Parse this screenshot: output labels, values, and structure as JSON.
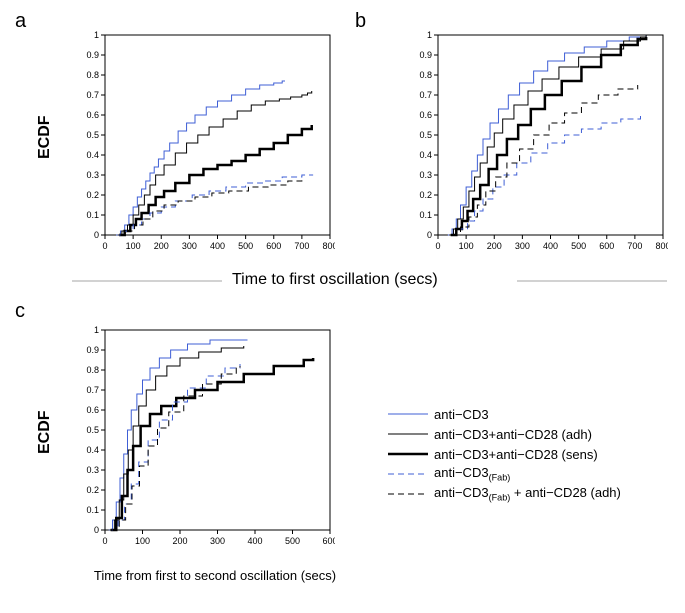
{
  "colors": {
    "blue": "#3f5fd6",
    "black": "#000000",
    "axis": "#000000",
    "grid": "none",
    "bg": "#ffffff"
  },
  "fonts": {
    "panel_label": 20,
    "axis_label": 16,
    "tick": 10,
    "legend": 13
  },
  "legend_items": [
    {
      "label_html": "anti−CD3",
      "color": "#3f5fd6",
      "width": 1,
      "dash": "none"
    },
    {
      "label_html": "anti−CD3+anti−CD28 (adh)",
      "color": "#000000",
      "width": 1,
      "dash": "none"
    },
    {
      "label_html": "anti−CD3+anti−CD28 (sens)",
      "color": "#000000",
      "width": 2.5,
      "dash": "none"
    },
    {
      "label_html": "anti−CD3<sub>(Fab)</sub>",
      "color": "#3f5fd6",
      "width": 1,
      "dash": "6,4"
    },
    {
      "label_html": "anti−CD3<sub>(Fab)</sub> + anti−CD28 (adh)",
      "color": "#000000",
      "width": 1,
      "dash": "6,4"
    }
  ],
  "panel_labels": {
    "a": "a",
    "b": "b",
    "c": "c"
  },
  "shared_xlabel_ab": "Time to first oscillation (secs)",
  "ylabel": "ECDF",
  "xlabel_c": "Time from first to second oscillation (secs)",
  "panel_a": {
    "xlim": [
      0,
      800
    ],
    "ylim": [
      0,
      1
    ],
    "xticks": [
      0,
      100,
      200,
      300,
      400,
      500,
      600,
      700,
      800
    ],
    "yticks": [
      0,
      0.1,
      0.2,
      0.3,
      0.4,
      0.5,
      0.6,
      0.7,
      0.8,
      0.9,
      1
    ],
    "series": [
      {
        "key": "anti_cd3",
        "color": "#3f5fd6",
        "width": 1,
        "dash": "none",
        "points": [
          [
            40,
            0
          ],
          [
            55,
            0.02
          ],
          [
            70,
            0.05
          ],
          [
            85,
            0.1
          ],
          [
            100,
            0.14
          ],
          [
            115,
            0.19
          ],
          [
            130,
            0.23
          ],
          [
            145,
            0.27
          ],
          [
            160,
            0.31
          ],
          [
            175,
            0.34
          ],
          [
            190,
            0.38
          ],
          [
            210,
            0.42
          ],
          [
            230,
            0.46
          ],
          [
            260,
            0.52
          ],
          [
            290,
            0.56
          ],
          [
            320,
            0.6
          ],
          [
            360,
            0.64
          ],
          [
            400,
            0.67
          ],
          [
            450,
            0.7
          ],
          [
            500,
            0.73
          ],
          [
            550,
            0.75
          ],
          [
            600,
            0.76
          ],
          [
            630,
            0.77
          ],
          [
            640,
            0.77
          ]
        ]
      },
      {
        "key": "anti_cd3_cd28_adh",
        "color": "#000000",
        "width": 1,
        "dash": "none",
        "points": [
          [
            45,
            0
          ],
          [
            60,
            0.02
          ],
          [
            80,
            0.05
          ],
          [
            100,
            0.1
          ],
          [
            120,
            0.15
          ],
          [
            140,
            0.2
          ],
          [
            160,
            0.25
          ],
          [
            180,
            0.3
          ],
          [
            210,
            0.35
          ],
          [
            250,
            0.41
          ],
          [
            290,
            0.46
          ],
          [
            330,
            0.5
          ],
          [
            370,
            0.54
          ],
          [
            420,
            0.58
          ],
          [
            470,
            0.62
          ],
          [
            520,
            0.65
          ],
          [
            570,
            0.67
          ],
          [
            620,
            0.68
          ],
          [
            660,
            0.69
          ],
          [
            700,
            0.7
          ],
          [
            720,
            0.71
          ],
          [
            735,
            0.72
          ]
        ]
      },
      {
        "key": "anti_cd3_cd28_sens",
        "color": "#000000",
        "width": 2.5,
        "dash": "none",
        "points": [
          [
            50,
            0
          ],
          [
            70,
            0.02
          ],
          [
            90,
            0.05
          ],
          [
            110,
            0.08
          ],
          [
            130,
            0.11
          ],
          [
            155,
            0.15
          ],
          [
            180,
            0.19
          ],
          [
            210,
            0.22
          ],
          [
            250,
            0.26
          ],
          [
            300,
            0.3
          ],
          [
            350,
            0.33
          ],
          [
            400,
            0.35
          ],
          [
            450,
            0.37
          ],
          [
            500,
            0.4
          ],
          [
            550,
            0.43
          ],
          [
            600,
            0.46
          ],
          [
            650,
            0.5
          ],
          [
            700,
            0.53
          ],
          [
            735,
            0.55
          ]
        ]
      },
      {
        "key": "anti_cd3_fab",
        "color": "#3f5fd6",
        "width": 1,
        "dash": "6,4",
        "points": [
          [
            50,
            0
          ],
          [
            75,
            0.02
          ],
          [
            100,
            0.05
          ],
          [
            130,
            0.08
          ],
          [
            160,
            0.11
          ],
          [
            200,
            0.14
          ],
          [
            250,
            0.17
          ],
          [
            310,
            0.2
          ],
          [
            370,
            0.22
          ],
          [
            430,
            0.24
          ],
          [
            500,
            0.26
          ],
          [
            560,
            0.27
          ],
          [
            630,
            0.29
          ],
          [
            700,
            0.3
          ],
          [
            740,
            0.3
          ]
        ]
      },
      {
        "key": "anti_cd3_fab_cd28",
        "color": "#000000",
        "width": 1,
        "dash": "6,4",
        "points": [
          [
            55,
            0
          ],
          [
            80,
            0.02
          ],
          [
            105,
            0.05
          ],
          [
            135,
            0.08
          ],
          [
            170,
            0.12
          ],
          [
            210,
            0.15
          ],
          [
            260,
            0.17
          ],
          [
            320,
            0.19
          ],
          [
            380,
            0.21
          ],
          [
            440,
            0.22
          ],
          [
            510,
            0.24
          ],
          [
            580,
            0.25
          ],
          [
            650,
            0.27
          ],
          [
            700,
            0.28
          ]
        ]
      }
    ]
  },
  "panel_b": {
    "xlim": [
      0,
      800
    ],
    "ylim": [
      0,
      1
    ],
    "xticks": [
      0,
      100,
      200,
      300,
      400,
      500,
      600,
      700,
      800
    ],
    "yticks": [
      0,
      0.1,
      0.2,
      0.3,
      0.4,
      0.5,
      0.6,
      0.7,
      0.8,
      0.9,
      1
    ],
    "series": [
      {
        "key": "anti_cd3",
        "color": "#3f5fd6",
        "width": 1,
        "dash": "none",
        "points": [
          [
            35,
            0
          ],
          [
            50,
            0.03
          ],
          [
            65,
            0.08
          ],
          [
            80,
            0.15
          ],
          [
            100,
            0.24
          ],
          [
            120,
            0.32
          ],
          [
            140,
            0.4
          ],
          [
            160,
            0.48
          ],
          [
            185,
            0.56
          ],
          [
            215,
            0.63
          ],
          [
            250,
            0.7
          ],
          [
            290,
            0.76
          ],
          [
            340,
            0.82
          ],
          [
            390,
            0.87
          ],
          [
            450,
            0.91
          ],
          [
            520,
            0.94
          ],
          [
            600,
            0.97
          ],
          [
            680,
            0.99
          ],
          [
            740,
            1
          ]
        ]
      },
      {
        "key": "anti_cd3_cd28_adh",
        "color": "#000000",
        "width": 1,
        "dash": "none",
        "points": [
          [
            40,
            0
          ],
          [
            55,
            0.03
          ],
          [
            70,
            0.08
          ],
          [
            90,
            0.14
          ],
          [
            110,
            0.22
          ],
          [
            130,
            0.29
          ],
          [
            150,
            0.36
          ],
          [
            175,
            0.44
          ],
          [
            200,
            0.51
          ],
          [
            230,
            0.58
          ],
          [
            270,
            0.65
          ],
          [
            320,
            0.72
          ],
          [
            370,
            0.78
          ],
          [
            430,
            0.84
          ],
          [
            500,
            0.89
          ],
          [
            580,
            0.93
          ],
          [
            660,
            0.97
          ],
          [
            720,
            0.99
          ],
          [
            740,
            1
          ]
        ]
      },
      {
        "key": "anti_cd3_cd28_sens",
        "color": "#000000",
        "width": 2.5,
        "dash": "none",
        "points": [
          [
            45,
            0
          ],
          [
            65,
            0.03
          ],
          [
            85,
            0.07
          ],
          [
            105,
            0.12
          ],
          [
            125,
            0.18
          ],
          [
            150,
            0.25
          ],
          [
            180,
            0.33
          ],
          [
            210,
            0.4
          ],
          [
            245,
            0.48
          ],
          [
            285,
            0.55
          ],
          [
            330,
            0.63
          ],
          [
            380,
            0.7
          ],
          [
            440,
            0.77
          ],
          [
            510,
            0.84
          ],
          [
            580,
            0.9
          ],
          [
            650,
            0.95
          ],
          [
            710,
            0.98
          ],
          [
            740,
            0.99
          ]
        ]
      },
      {
        "key": "anti_cd3_fab",
        "color": "#3f5fd6",
        "width": 1,
        "dash": "6,4",
        "points": [
          [
            55,
            0
          ],
          [
            80,
            0.03
          ],
          [
            105,
            0.07
          ],
          [
            130,
            0.12
          ],
          [
            160,
            0.18
          ],
          [
            195,
            0.24
          ],
          [
            235,
            0.3
          ],
          [
            280,
            0.36
          ],
          [
            330,
            0.41
          ],
          [
            390,
            0.46
          ],
          [
            450,
            0.5
          ],
          [
            510,
            0.53
          ],
          [
            580,
            0.56
          ],
          [
            650,
            0.58
          ],
          [
            720,
            0.6
          ]
        ]
      },
      {
        "key": "anti_cd3_fab_cd28",
        "color": "#000000",
        "width": 1,
        "dash": "6,4",
        "points": [
          [
            55,
            0
          ],
          [
            80,
            0.04
          ],
          [
            110,
            0.09
          ],
          [
            140,
            0.15
          ],
          [
            170,
            0.22
          ],
          [
            205,
            0.29
          ],
          [
            245,
            0.36
          ],
          [
            290,
            0.43
          ],
          [
            340,
            0.5
          ],
          [
            395,
            0.56
          ],
          [
            450,
            0.61
          ],
          [
            510,
            0.66
          ],
          [
            570,
            0.7
          ],
          [
            640,
            0.73
          ],
          [
            710,
            0.75
          ]
        ]
      }
    ]
  },
  "panel_c": {
    "xlim": [
      0,
      600
    ],
    "ylim": [
      0,
      1
    ],
    "xticks": [
      0,
      100,
      200,
      300,
      400,
      500,
      600
    ],
    "yticks": [
      0,
      0.1,
      0.2,
      0.3,
      0.4,
      0.5,
      0.6,
      0.7,
      0.8,
      0.9,
      1
    ],
    "series": [
      {
        "key": "anti_cd3",
        "color": "#3f5fd6",
        "width": 1,
        "dash": "none",
        "points": [
          [
            10,
            0
          ],
          [
            20,
            0.05
          ],
          [
            30,
            0.14
          ],
          [
            40,
            0.26
          ],
          [
            50,
            0.38
          ],
          [
            60,
            0.5
          ],
          [
            70,
            0.6
          ],
          [
            85,
            0.68
          ],
          [
            100,
            0.75
          ],
          [
            120,
            0.81
          ],
          [
            145,
            0.86
          ],
          [
            175,
            0.9
          ],
          [
            220,
            0.93
          ],
          [
            280,
            0.95
          ],
          [
            370,
            0.95
          ],
          [
            380,
            0.95
          ]
        ]
      },
      {
        "key": "anti_cd3_cd28_adh",
        "color": "#000000",
        "width": 1,
        "dash": "none",
        "points": [
          [
            12,
            0
          ],
          [
            25,
            0.05
          ],
          [
            38,
            0.15
          ],
          [
            50,
            0.28
          ],
          [
            62,
            0.4
          ],
          [
            75,
            0.52
          ],
          [
            90,
            0.62
          ],
          [
            110,
            0.7
          ],
          [
            135,
            0.77
          ],
          [
            165,
            0.82
          ],
          [
            200,
            0.86
          ],
          [
            250,
            0.89
          ],
          [
            310,
            0.91
          ],
          [
            370,
            0.92
          ]
        ]
      },
      {
        "key": "anti_cd3_cd28_sens",
        "color": "#000000",
        "width": 2.5,
        "dash": "none",
        "points": [
          [
            15,
            0
          ],
          [
            30,
            0.06
          ],
          [
            45,
            0.17
          ],
          [
            60,
            0.3
          ],
          [
            75,
            0.42
          ],
          [
            95,
            0.52
          ],
          [
            120,
            0.58
          ],
          [
            150,
            0.62
          ],
          [
            190,
            0.66
          ],
          [
            240,
            0.7
          ],
          [
            300,
            0.74
          ],
          [
            370,
            0.78
          ],
          [
            450,
            0.82
          ],
          [
            530,
            0.85
          ],
          [
            555,
            0.86
          ]
        ]
      },
      {
        "key": "anti_cd3_fab",
        "color": "#3f5fd6",
        "width": 1,
        "dash": "6,4",
        "points": [
          [
            18,
            0
          ],
          [
            35,
            0.05
          ],
          [
            52,
            0.13
          ],
          [
            70,
            0.23
          ],
          [
            90,
            0.34
          ],
          [
            115,
            0.45
          ],
          [
            145,
            0.55
          ],
          [
            180,
            0.64
          ],
          [
            220,
            0.71
          ],
          [
            270,
            0.77
          ],
          [
            320,
            0.81
          ],
          [
            360,
            0.83
          ]
        ]
      },
      {
        "key": "anti_cd3_fab_cd28",
        "color": "#000000",
        "width": 1,
        "dash": "6,4",
        "points": [
          [
            20,
            0
          ],
          [
            38,
            0.05
          ],
          [
            55,
            0.13
          ],
          [
            72,
            0.22
          ],
          [
            92,
            0.32
          ],
          [
            115,
            0.42
          ],
          [
            140,
            0.51
          ],
          [
            170,
            0.59
          ],
          [
            210,
            0.67
          ],
          [
            260,
            0.73
          ],
          [
            310,
            0.78
          ],
          [
            350,
            0.81
          ],
          [
            360,
            0.82
          ]
        ]
      }
    ]
  }
}
